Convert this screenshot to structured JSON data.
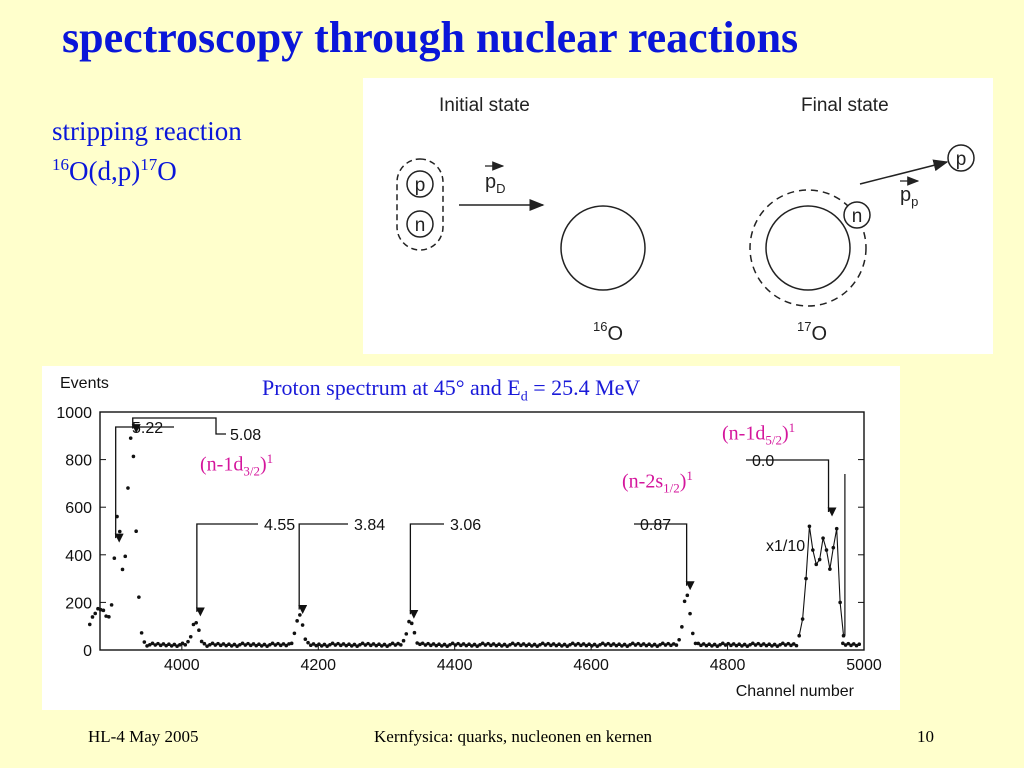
{
  "slide": {
    "title": "spectroscopy through nuclear reactions",
    "subtitle_line1": "stripping reaction",
    "reaction": {
      "target_mass": "16",
      "target_rest": "O(d,p)",
      "product_mass": "17",
      "product_symbol": "O"
    }
  },
  "diagram": {
    "initial_state": "Initial state",
    "final_state": "Final state",
    "proton": "p",
    "neutron": "n",
    "momentum_deuteron": {
      "symbol": "p",
      "subscript": "D"
    },
    "momentum_proton": {
      "symbol": "p",
      "subscript": "p"
    },
    "target": {
      "mass": "16",
      "symbol": "O"
    },
    "product": {
      "mass": "17",
      "symbol": "O"
    }
  },
  "spectrum": {
    "caption_pre": "Proton spectrum at 45° and E",
    "caption_sub": "d",
    "caption_post": "  = 25.4 MeV",
    "peak_labels": [
      "5.22",
      "5.08",
      "4.55",
      "3.84",
      "3.06",
      "0.87",
      "0.0"
    ],
    "scale_note": "x1/10",
    "configs": [
      {
        "pre": "(n-1d",
        "sub": "3/2",
        "post": ")",
        "sup": "1"
      },
      {
        "pre": "(n-2s",
        "sub": "1/2",
        "post": ")",
        "sup": "1"
      },
      {
        "pre": "(n-1d",
        "sub": "5/2",
        "post": ")",
        "sup": "1"
      }
    ],
    "colors": {
      "caption": "#1a1ad9",
      "configs": "#d4169c"
    }
  },
  "chart_data": {
    "type": "scatter",
    "ylabel": "Events",
    "xlabel": "Channel number",
    "xlim": [
      3880,
      5000
    ],
    "ylim": [
      0,
      1000
    ],
    "x_ticks": [
      4000,
      4200,
      4400,
      4600,
      4800,
      5000
    ],
    "y_ticks": [
      0,
      200,
      400,
      600,
      800,
      1000
    ],
    "x_tick_labels": [
      "4000",
      "4200",
      "4400",
      "4600",
      "4800",
      "5000"
    ],
    "y_tick_labels": [
      "0",
      "200",
      "400",
      "600",
      "800",
      "1000"
    ],
    "peaks": [
      {
        "label": "5.22",
        "channel": 3905,
        "counts": 530
      },
      {
        "label": "5.08",
        "channel": 3927,
        "counts": 900
      },
      {
        "label": "4.55",
        "channel": 4020,
        "counts": 120
      },
      {
        "label": "3.84",
        "channel": 4172,
        "counts": 150
      },
      {
        "label": "3.06",
        "channel": 4335,
        "counts": 125
      },
      {
        "label": "0.87",
        "channel": 4740,
        "counts": 240
      },
      {
        "label": "0.0",
        "channel": 4940,
        "counts": 470
      }
    ]
  },
  "footer": {
    "left": "HL-4  May  2005",
    "center": "Kernfysica: quarks, nucleonen en kernen",
    "right": "10"
  }
}
